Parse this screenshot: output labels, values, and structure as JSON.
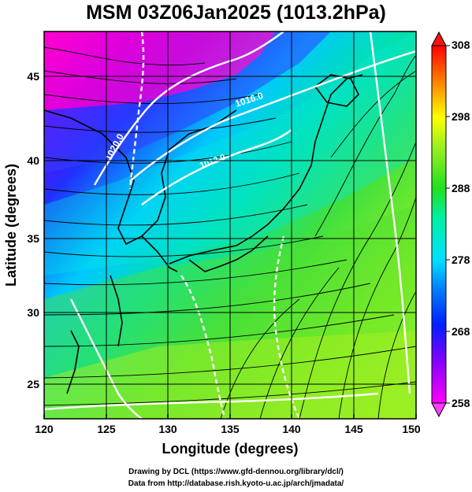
{
  "title": "MSM 03Z06Jan2025 (1013.2hPa)",
  "x_axis": {
    "label": "Longitude (degrees)",
    "ticks": [
      "120",
      "125",
      "130",
      "135",
      "140",
      "145",
      "150"
    ]
  },
  "y_axis": {
    "label": "Latitude  (degrees)",
    "ticks": [
      "45",
      "40",
      "35",
      "30",
      "25"
    ]
  },
  "colorbar": {
    "ticks": [
      "308",
      "298",
      "288",
      "278",
      "268",
      "258"
    ]
  },
  "contour_labels": [
    "1020.0",
    "1016.0",
    "1012.0"
  ],
  "credits": {
    "line1": "Drawing by DCL (https://www.gfd-dennou.org/library/dcl/)",
    "line2": "Data from http://database.rish.kyoto-u.ac.jp/arch/jmadata/"
  },
  "colors": {
    "cold": "#ff00cc",
    "cool": "#2040ff",
    "mid": "#00e0e0",
    "warm": "#20d020",
    "hot": "#ffff00"
  },
  "icons": [
    "colorbar-up-arrow-icon",
    "colorbar-down-arrow-icon"
  ]
}
